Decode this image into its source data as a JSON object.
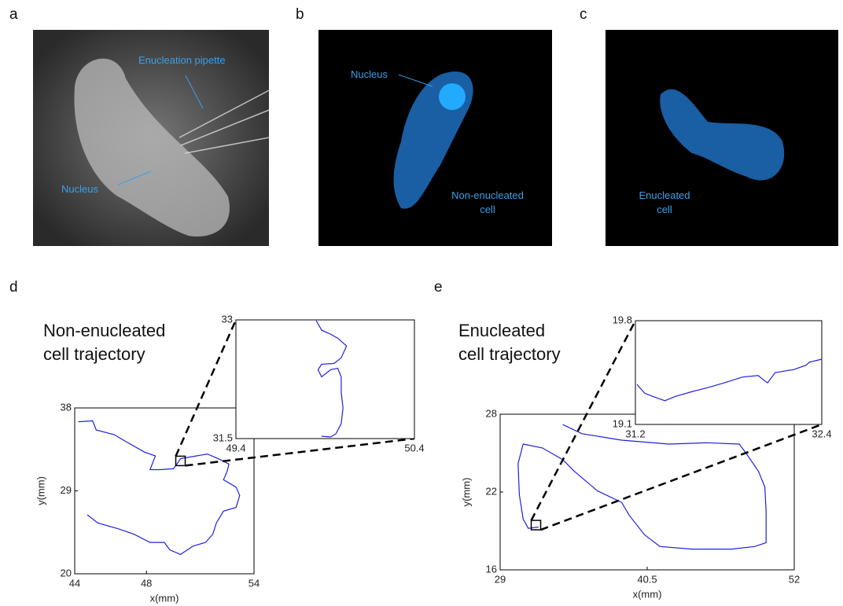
{
  "figure": {
    "panel_labels": [
      "a",
      "b",
      "c",
      "d",
      "e"
    ],
    "images": [
      {
        "annotations": [
          "Enucleation pipette",
          "Nucleus"
        ]
      },
      {
        "annotations": [
          "Nucleus",
          "Non-enucleated\ncell"
        ]
      },
      {
        "annotations": [
          "Enucleated\ncell"
        ]
      }
    ]
  },
  "chart_data": [
    {
      "type": "line",
      "title": "Non-enucleated\ncell trajectory",
      "xlabel": "x(mm)",
      "ylabel": "y(mm)",
      "xlim": [
        44,
        54
      ],
      "ylim": [
        20,
        38
      ],
      "xticks": [
        44,
        48,
        54
      ],
      "yticks": [
        20,
        29,
        38
      ],
      "series": [
        {
          "color": "#2020e0",
          "x": [
            44.2,
            45.0,
            45.2,
            46.2,
            46.9,
            47.9,
            48.5,
            48.2,
            48.8,
            49.5,
            49.7,
            49.9,
            50.8,
            51.4,
            52.1,
            52.6,
            52.5,
            52.3,
            53.0,
            53.2,
            53.0,
            52.3,
            51.9,
            51.7,
            51.3,
            50.6,
            49.9,
            49.3,
            49.0,
            48.2,
            47.3,
            46.4,
            45.3,
            44.7
          ],
          "values": [
            36.5,
            36.6,
            35.6,
            35.1,
            34.3,
            33.2,
            32.8,
            31.3,
            31.3,
            31.4,
            31.9,
            32.5,
            32.8,
            33.0,
            32.4,
            31.9,
            31.1,
            30.2,
            29.4,
            28.5,
            27.2,
            26.8,
            25.5,
            24.3,
            23.4,
            23.0,
            22.1,
            22.6,
            23.4,
            23.4,
            24.3,
            24.9,
            25.5,
            26.4
          ]
        }
      ],
      "inset": {
        "xlim": [
          49.4,
          50.4
        ],
        "ylim": [
          31.5,
          33
        ],
        "xticks": [
          49.4,
          50.4
        ],
        "yticks": [
          31.5,
          33
        ],
        "series": [
          {
            "color": "#2020e0",
            "x": [
              49.85,
              49.88,
              49.93,
              49.97,
              50.02,
              49.99,
              49.95,
              49.88,
              49.86,
              49.88,
              49.93,
              49.97,
              49.99,
              49.99,
              50.0,
              49.99,
              49.96,
              49.93,
              49.88
            ],
            "values": [
              32.99,
              32.87,
              32.82,
              32.77,
              32.67,
              32.52,
              32.45,
              32.44,
              32.37,
              32.28,
              32.37,
              32.39,
              32.28,
              32.08,
              31.89,
              31.69,
              31.56,
              31.52,
              31.53
            ]
          }
        ]
      }
    },
    {
      "type": "line",
      "title": "Enucleated\ncell trajectory",
      "xlabel": "x(mm)",
      "ylabel": "y(mm)",
      "xlim": [
        29,
        52
      ],
      "ylim": [
        16,
        28
      ],
      "xticks": [
        29,
        40.5,
        52
      ],
      "yticks": [
        16,
        22,
        28
      ],
      "series": [
        {
          "color": "#2020e0",
          "x": [
            33.9,
            35.4,
            38.5,
            42.2,
            45.2,
            47.7,
            48.3,
            49.2,
            49.7,
            49.8,
            49.8,
            48.9,
            47.1,
            44.0,
            41.5,
            40.3,
            39.1,
            38.5,
            36.6,
            34.8,
            33.9,
            32.3,
            30.8,
            30.4,
            30.5,
            30.8,
            31.2,
            32.0
          ],
          "values": [
            27.2,
            26.5,
            26.0,
            25.7,
            25.8,
            25.7,
            24.9,
            23.6,
            22.4,
            20.5,
            18.1,
            17.8,
            17.6,
            17.6,
            17.8,
            18.7,
            20.2,
            21.2,
            22.1,
            23.6,
            24.5,
            25.4,
            25.7,
            24.2,
            21.8,
            19.9,
            19.2,
            19.3
          ]
        }
      ],
      "inset": {
        "xlim": [
          31.2,
          32.4
        ],
        "ylim": [
          19.1,
          19.8
        ],
        "xticks": [
          31.2,
          32.4
        ],
        "yticks": [
          19.1,
          19.8
        ],
        "series": [
          {
            "color": "#2020e0",
            "x": [
              31.21,
              31.26,
              31.31,
              31.39,
              31.46,
              31.56,
              31.67,
              31.77,
              31.89,
              31.99,
              32.05,
              32.1,
              32.22,
              32.3,
              32.32,
              32.4
            ],
            "values": [
              19.37,
              19.31,
              19.29,
              19.26,
              19.29,
              19.32,
              19.35,
              19.38,
              19.42,
              19.43,
              19.38,
              19.45,
              19.47,
              19.5,
              19.52,
              19.54
            ]
          }
        ]
      }
    }
  ]
}
